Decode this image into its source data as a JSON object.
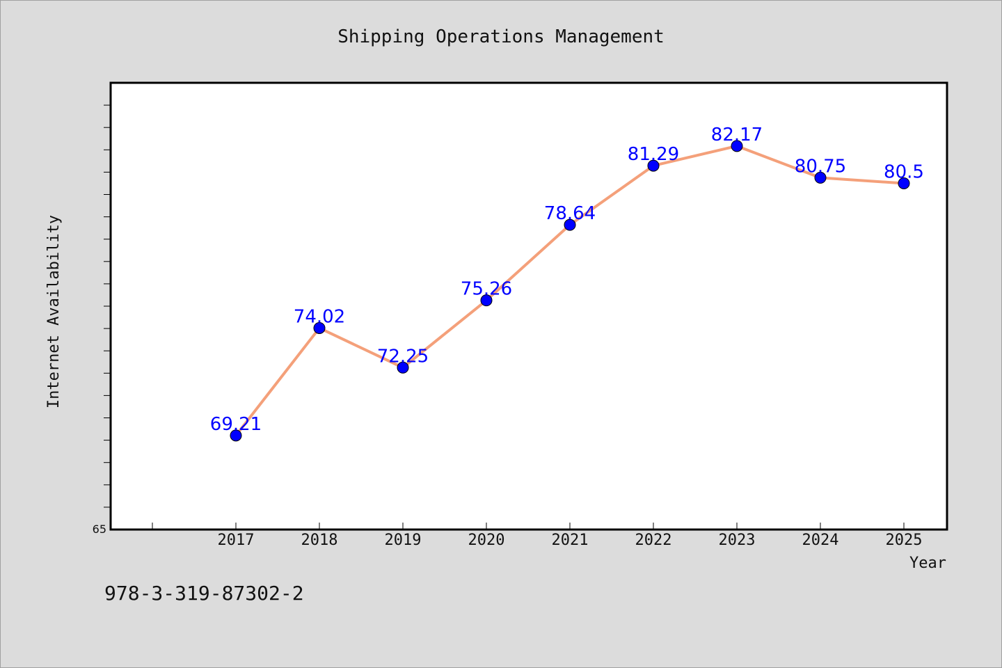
{
  "chart_data": {
    "type": "line",
    "title": "Shipping Operations Management",
    "xlabel": "Year",
    "ylabel": "Internet Availability",
    "x": [
      "2017",
      "2018",
      "2019",
      "2020",
      "2021",
      "2022",
      "2023",
      "2024",
      "2025"
    ],
    "series": [
      {
        "values": [
          69.21,
          74.02,
          72.25,
          75.26,
          78.64,
          81.29,
          82.17,
          80.75,
          80.5
        ],
        "labels": [
          "69.21",
          "74.02",
          "72.25",
          "75.26",
          "78.64",
          "81.29",
          "82.17",
          "80.75",
          "80.5"
        ],
        "line_color": "#f4a07a",
        "marker_color": "#0000ff"
      }
    ],
    "ylim": [
      65,
      85
    ],
    "y_tick_labels": [
      "65"
    ],
    "grid": false,
    "legend": "none"
  },
  "footer": {
    "isbn": "978-3-319-87302-2"
  },
  "colors": {
    "background": "#dcdcdc",
    "plot_background": "#ffffff",
    "label_color": "#0000ff"
  }
}
